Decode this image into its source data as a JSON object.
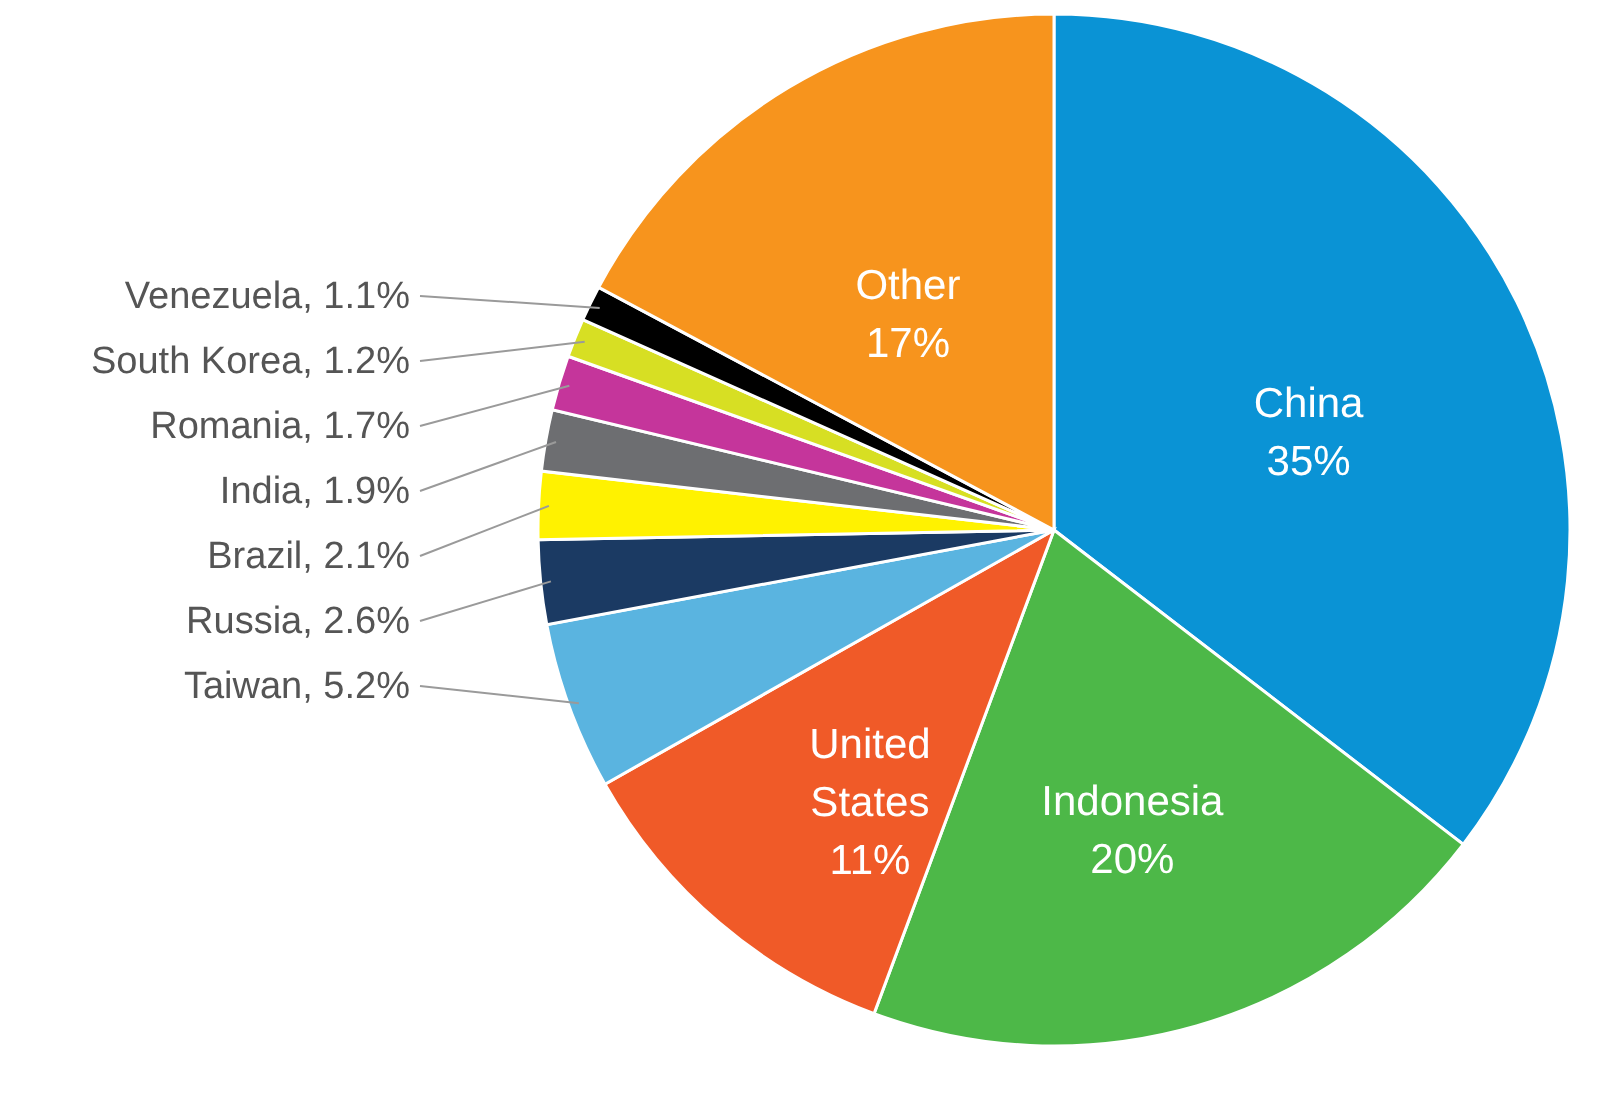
{
  "chart_data": {
    "type": "pie",
    "categories": [
      "China",
      "Indonesia",
      "United States",
      "Taiwan",
      "Russia",
      "Brazil",
      "India",
      "Romania",
      "South Korea",
      "Venezuela",
      "Other"
    ],
    "values": [
      35,
      20,
      11,
      5.2,
      2.6,
      2.1,
      1.9,
      1.7,
      1.2,
      1.1,
      17
    ],
    "value_labels": [
      "35%",
      "20%",
      "11%",
      "5.2%",
      "2.6%",
      "2.1%",
      "1.9%",
      "1.7%",
      "1.2%",
      "1.1%",
      "17%"
    ],
    "colors": [
      "#0a93d5",
      "#4db848",
      "#f05a28",
      "#5ab4e0",
      "#1b3a63",
      "#fff200",
      "#6d6e71",
      "#c5359b",
      "#d7df23",
      "#000000",
      "#f7941d"
    ]
  }
}
